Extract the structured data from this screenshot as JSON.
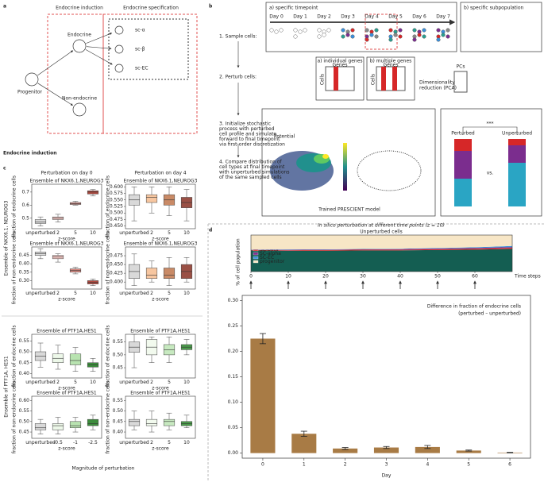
{
  "panel_a": {
    "label": "a",
    "headers": [
      "Endocrine induction",
      "Endocrine specification"
    ],
    "nodes": {
      "progenitor": "Progenitor",
      "endocrine": "Endocrine",
      "non_endocrine": "Non-endocrine",
      "sc_a": "sc-α",
      "sc_b": "sc-β",
      "sc_ec": "sc-EC"
    }
  },
  "panel_b": {
    "label": "b",
    "steps": {
      "sample": "1. Sample cells:",
      "perturb": "2. Perturb cells:",
      "simulate": [
        "3. Initialize stochastic",
        "process with perturbed",
        "cell profile and simulate",
        "forward to final timepoint",
        "via first-order discretization"
      ],
      "compare": [
        "4. Compare distribution of",
        "cell types at final timepoint",
        "with unperturbed simulations",
        "of the same sampled cells"
      ]
    },
    "timepoint": "a) specific timepoint",
    "subpopulation": "b) specific subpopulation",
    "days": [
      "Day 0",
      "Day 1",
      "Day 2",
      "Day 3",
      "Day 4",
      "Day 5",
      "Day 6",
      "Day 7"
    ],
    "genes": {
      "individual": "a) individual genes",
      "multiple": "b) multiple genes",
      "genes": "Genes",
      "cells": "Cells"
    },
    "pca": [
      "Dimensionality",
      "reduction (PCA)"
    ],
    "pcs": "PCs",
    "potential": "Potential",
    "model": "Trained PRESCIENT model",
    "compare_labels": {
      "perturbed": "Perturbed",
      "unperturbed": "Unperturbed",
      "vs": "vs.",
      "significance": "***"
    }
  },
  "section_title": "Endocrine induction",
  "panel_c": {
    "label": "c",
    "column_titles": [
      "Perturbation on day 0",
      "Perturbation on day 4"
    ],
    "row_titles": [
      "Ensemble of NKX6.1, NEUROG3",
      "Ensemble of PTF1A, HES1"
    ],
    "xlabel": "Magnitude of perturbation",
    "plots": [
      {
        "title": "Ensemble of NKX6.1,NEUROG3",
        "ylabel": "fraction of endocrine cells",
        "xlabel": "z-score",
        "categories": [
          "unperturbed",
          "2",
          "5",
          "10"
        ],
        "ylim": [
          0.42,
          0.76
        ],
        "yticks": [
          0.5,
          0.6,
          0.7
        ],
        "boxes": [
          [
            0.44,
            0.46,
            0.47,
            0.49,
            0.51
          ],
          [
            0.47,
            0.49,
            0.5,
            0.51,
            0.53
          ],
          [
            0.6,
            0.605,
            0.61,
            0.62,
            0.63
          ],
          [
            0.67,
            0.685,
            0.7,
            0.71,
            0.72
          ]
        ],
        "colors": [
          "#d9d9d9",
          "#f4c7c3",
          "#d98a82",
          "#b04a40"
        ]
      },
      {
        "title": "Ensemble of NKX6.1,NEUROG3",
        "ylabel": "fraction of endocrine cells",
        "xlabel": "z-score",
        "categories": [
          "unperturbed",
          "2",
          "5",
          "10"
        ],
        "ylim": [
          0.44,
          0.61
        ],
        "yticks": [
          {
            "value": 0.45,
            "label": "0.450"
          },
          0.475,
          {
            "value": 0.5,
            "label": "0.500"
          },
          0.525,
          {
            "value": 0.55,
            "label": "0.550"
          },
          0.575,
          {
            "value": 0.6,
            "label": "0.600"
          }
        ],
        "boxes": [
          [
            0.47,
            0.53,
            0.55,
            0.57,
            0.6
          ],
          [
            0.5,
            0.54,
            0.56,
            0.57,
            0.6
          ],
          [
            0.49,
            0.53,
            0.55,
            0.57,
            0.6
          ],
          [
            0.47,
            0.52,
            0.54,
            0.56,
            0.59
          ]
        ],
        "colors": [
          "#d9d9d9",
          "#f7c6a0",
          "#c98a66",
          "#9a5045"
        ]
      },
      {
        "title": "Ensemble of NKX6.1,NEUROG3",
        "ylabel": "fraction of non-endocrine cells",
        "xlabel": "z-score",
        "categories": [
          "unperturbed",
          "2",
          "5",
          "10"
        ],
        "ylim": [
          0.25,
          0.5
        ],
        "yticks": [
          {
            "value": 0.3,
            "label": "0.30"
          },
          0.35,
          {
            "value": 0.4,
            "label": "0.40"
          },
          0.45
        ],
        "boxes": [
          [
            0.43,
            0.45,
            0.46,
            0.47,
            0.49
          ],
          [
            0.41,
            0.43,
            0.44,
            0.45,
            0.46
          ],
          [
            0.34,
            0.35,
            0.36,
            0.37,
            0.38
          ],
          [
            0.27,
            0.28,
            0.29,
            0.3,
            0.31
          ]
        ],
        "colors": [
          "#d9d9d9",
          "#f4c7c3",
          "#d98a82",
          "#b04a40"
        ]
      },
      {
        "title": "Ensemble of NKX6.1,NEUROG3",
        "ylabel": "fraction of non-endocrine cells",
        "xlabel": "z-score",
        "categories": [
          "unperturbed",
          "2",
          "5",
          "10"
        ],
        "ylim": [
          0.38,
          0.5
        ],
        "yticks": [
          {
            "value": 0.4,
            "label": "0.400"
          },
          0.425,
          {
            "value": 0.45,
            "label": "0.450"
          },
          0.475
        ],
        "boxes": [
          [
            0.39,
            0.41,
            0.43,
            0.45,
            0.48
          ],
          [
            0.4,
            0.41,
            0.42,
            0.44,
            0.46
          ],
          [
            0.39,
            0.41,
            0.42,
            0.44,
            0.47
          ],
          [
            0.4,
            0.41,
            0.43,
            0.45,
            0.47
          ]
        ],
        "colors": [
          "#d9d9d9",
          "#f7c6a0",
          "#c98a66",
          "#9a5045"
        ]
      },
      {
        "title": "Ensemble of PTF1A,HES1",
        "ylabel": "fraction of endocrine cells",
        "xlabel": "z-score",
        "categories": [
          "unperturbed",
          "2",
          "5",
          "10"
        ],
        "ylim": [
          0.38,
          0.58
        ],
        "yticks": [
          {
            "value": 0.4,
            "label": "0.40"
          },
          0.45,
          {
            "value": 0.5,
            "label": "0.50"
          },
          0.55
        ],
        "boxes": [
          [
            0.43,
            0.46,
            0.48,
            0.5,
            0.54
          ],
          [
            0.42,
            0.45,
            0.47,
            0.49,
            0.53
          ],
          [
            0.41,
            0.44,
            0.46,
            0.49,
            0.52
          ],
          [
            0.41,
            0.43,
            0.44,
            0.45,
            0.47
          ]
        ],
        "colors": [
          "#d9d9d9",
          "#edf8e9",
          "#b8e3b0",
          "#3c8c3c"
        ]
      },
      {
        "title": "Ensemble of PTF1A,HES1",
        "ylabel": "fraction of endocrine cells",
        "xlabel": "z-score",
        "categories": [
          "unperturbed",
          "2",
          "5",
          "10"
        ],
        "ylim": [
          0.41,
          0.58
        ],
        "yticks": [
          0.45,
          {
            "value": 0.5,
            "label": "0.50"
          },
          0.55
        ],
        "boxes": [
          [
            0.45,
            0.51,
            0.53,
            0.55,
            0.58
          ],
          [
            0.47,
            0.5,
            0.53,
            0.56,
            0.57
          ],
          [
            0.47,
            0.5,
            0.52,
            0.54,
            0.57
          ],
          [
            0.5,
            0.52,
            0.53,
            0.54,
            0.56
          ]
        ],
        "colors": [
          "#d9d9d9",
          "#f2faee",
          "#c7e9c0",
          "#4a9a4a"
        ]
      },
      {
        "title": "Ensemble of PTF1A,HES1",
        "ylabel": "fraction of non-endocrine cells",
        "xlabel": "z-score",
        "categories": [
          "unperturbed",
          "-0.5",
          "-1",
          "-2.5"
        ],
        "ylim": [
          0.42,
          0.62
        ],
        "yticks": [
          0.45,
          {
            "value": 0.5,
            "label": "0.50"
          },
          0.55,
          {
            "value": 0.6,
            "label": "0.60"
          }
        ],
        "boxes": [
          [
            0.44,
            0.46,
            0.47,
            0.49,
            0.51
          ],
          [
            0.44,
            0.46,
            0.48,
            0.49,
            0.52
          ],
          [
            0.45,
            0.47,
            0.48,
            0.5,
            0.52
          ],
          [
            0.46,
            0.48,
            0.49,
            0.51,
            0.53
          ]
        ],
        "colors": [
          "#d9d9d9",
          "#edf8e9",
          "#b8e3b0",
          "#3c8c3c"
        ]
      },
      {
        "title": "Ensemble of PTF1A,HES1",
        "ylabel": "fraction of non-endocrine cells",
        "xlabel": "z-score",
        "categories": [
          "unperturbed",
          "2",
          "5",
          "10"
        ],
        "ylim": [
          0.37,
          0.57
        ],
        "yticks": [
          {
            "value": 0.4,
            "label": "0.40"
          },
          0.45,
          {
            "value": 0.5,
            "label": "0.50"
          },
          0.55
        ],
        "boxes": [
          [
            0.41,
            0.43,
            0.45,
            0.46,
            0.5
          ],
          [
            0.4,
            0.43,
            0.44,
            0.46,
            0.5
          ],
          [
            0.41,
            0.43,
            0.45,
            0.46,
            0.49
          ],
          [
            0.42,
            0.43,
            0.44,
            0.45,
            0.48
          ]
        ],
        "colors": [
          "#d9d9d9",
          "#f2faee",
          "#c7e9c0",
          "#4a9a4a"
        ]
      }
    ]
  },
  "panel_d": {
    "label": "d",
    "title": "In silico perturbation at different time points (z = 10)",
    "area": {
      "type": "area",
      "title": "Unperturbed cells",
      "ylabel": "% of cell population",
      "xlabel": "Time steps",
      "x": [
        0,
        10,
        20,
        30,
        40,
        50,
        60,
        70
      ],
      "xlim": [
        0,
        70
      ],
      "xticks": [
        0,
        10,
        20,
        30,
        40,
        50,
        60
      ],
      "ylim": [
        0,
        100
      ],
      "series": [
        {
          "name": "Non-endocrine",
          "color": "#145e52",
          "values": [
            58,
            57,
            57,
            58,
            58,
            59,
            60,
            62
          ]
        },
        {
          "name": "SC-beta",
          "color": "#d62728",
          "values": [
            1,
            1.5,
            2,
            2,
            2,
            2.5,
            3,
            3
          ]
        },
        {
          "name": "SC-alpha",
          "color": "#7b2d8e",
          "values": [
            0.5,
            1,
            1,
            1,
            1.5,
            1.5,
            1.5,
            2
          ]
        },
        {
          "name": "SC-EC",
          "color": "#3b8fd9",
          "values": [
            0.5,
            1,
            1,
            1,
            1,
            1.5,
            2,
            3
          ]
        },
        {
          "name": "progenitor",
          "color": "#f7e6c6",
          "values": [
            40,
            39.5,
            39,
            38,
            37.5,
            35.5,
            33.5,
            30
          ]
        }
      ]
    },
    "bar": {
      "type": "bar",
      "title": [
        "Difference in fraction of endocrine cells",
        "(perturbed – unperturbed)"
      ],
      "xlabel": "Day",
      "categories": [
        "0",
        "1",
        "2",
        "3",
        "4",
        "5",
        "6"
      ],
      "values": [
        0.225,
        0.038,
        0.009,
        0.011,
        0.012,
        0.005,
        0.001
      ],
      "errors": [
        0.01,
        0.005,
        0.002,
        0.002,
        0.003,
        0.001,
        0.0005
      ],
      "color": "#a87b45",
      "ylim": [
        -0.01,
        0.31
      ],
      "yticks": [
        {
          "value": 0,
          "label": "0.00"
        },
        0.05,
        {
          "value": 0.1,
          "label": "0.10"
        },
        0.15,
        {
          "value": 0.2,
          "label": "0.20"
        },
        0.25,
        {
          "value": 0.3,
          "label": "0.30"
        }
      ]
    }
  }
}
